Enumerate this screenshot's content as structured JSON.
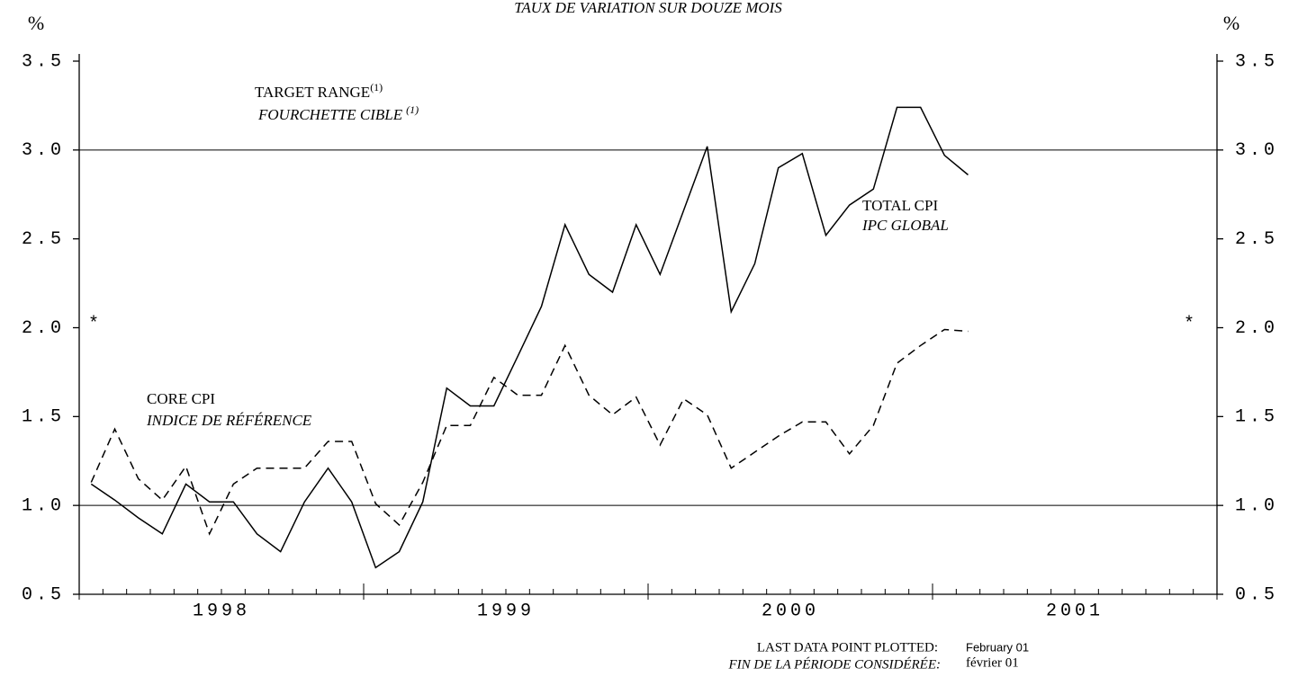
{
  "chart_data": {
    "type": "line",
    "title": "TAUX DE VARIATION SUR DOUZE MOIS",
    "y_unit_left": "%",
    "y_unit_right": "%",
    "xlim": [
      1998,
      2002
    ],
    "xticks": [
      {
        "value": 1998.5,
        "label": "1998"
      },
      {
        "value": 1999.5,
        "label": "1999"
      },
      {
        "value": 2000.5,
        "label": "2000"
      },
      {
        "value": 2001.5,
        "label": "2001"
      }
    ],
    "ylim": [
      0.5,
      3.5
    ],
    "yticks": [
      0.5,
      {
        "value": 1,
        "label": "1.0"
      },
      1.5,
      {
        "value": 2,
        "label": "2.0"
      },
      2.5,
      {
        "value": 3,
        "label": "3.0"
      },
      3.5
    ],
    "target_range": [
      1,
      3
    ],
    "x": [
      1998.042,
      1998.125,
      1998.208,
      1998.292,
      1998.375,
      1998.458,
      1998.542,
      1998.625,
      1998.708,
      1998.792,
      1998.875,
      1998.958,
      1999.042,
      1999.125,
      1999.208,
      1999.292,
      1999.375,
      1999.458,
      1999.542,
      1999.625,
      1999.708,
      1999.792,
      1999.875,
      1999.958,
      2000.042,
      2000.125,
      2000.208,
      2000.292,
      2000.375,
      2000.458,
      2000.542,
      2000.625,
      2000.708,
      2000.792,
      2000.875,
      2000.958,
      2001.042,
      2001.125
    ],
    "series": [
      {
        "name": "TOTAL CPI",
        "name_fr": "IPC GLOBAL",
        "color": "#000000",
        "style": "solid",
        "values": [
          1.12,
          1.03,
          0.93,
          0.84,
          1.12,
          1.02,
          1.02,
          0.84,
          0.74,
          1.02,
          1.21,
          1.02,
          0.65,
          0.74,
          1.02,
          1.66,
          1.56,
          1.56,
          1.84,
          2.12,
          2.58,
          2.3,
          2.2,
          2.58,
          2.3,
          2.66,
          3.02,
          2.09,
          2.36,
          2.9,
          2.98,
          2.52,
          2.69,
          2.78,
          3.24,
          3.24,
          2.97,
          2.86
        ]
      },
      {
        "name": "CORE CPI",
        "name_fr": "INDICE DE RÉFÉRENCE",
        "color": "#000000",
        "style": "dashed",
        "values": [
          1.13,
          1.43,
          1.15,
          1.03,
          1.22,
          0.84,
          1.12,
          1.21,
          1.21,
          1.21,
          1.36,
          1.36,
          1.01,
          0.89,
          1.13,
          1.45,
          1.45,
          1.72,
          1.62,
          1.62,
          1.9,
          1.62,
          1.51,
          1.61,
          1.34,
          1.6,
          1.51,
          1.21,
          1.3,
          1.39,
          1.47,
          1.47,
          1.29,
          1.45,
          1.8,
          1.9,
          1.99,
          1.98
        ]
      }
    ],
    "annotations": {
      "target_en": "TARGET RANGE",
      "target_en_note": "(1)",
      "target_fr": "FOURCHETTE CIBLE",
      "target_fr_note": "(1)",
      "marker_left": "*",
      "marker_right": "*",
      "last_point_en": "LAST DATA POINT PLOTTED:",
      "last_point_fr": "FIN DE LA PÉRIODE CONSIDÉRÉE:",
      "last_date_en": "February 01",
      "last_date_fr": "février 01"
    }
  }
}
